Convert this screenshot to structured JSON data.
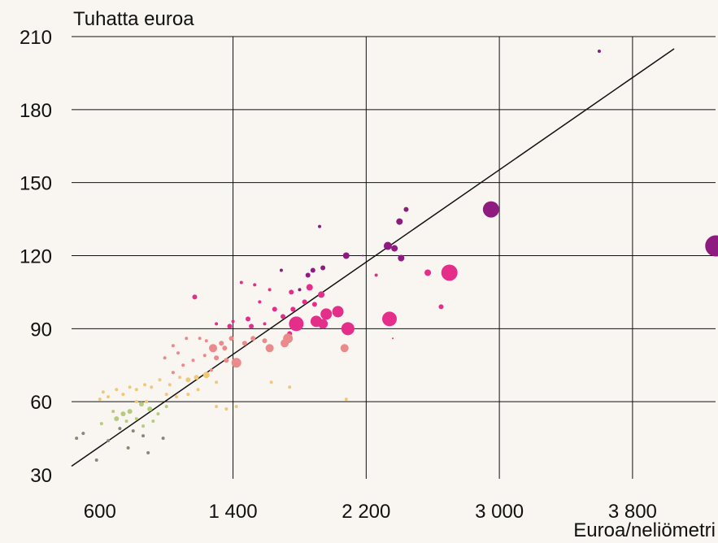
{
  "chart_data": {
    "type": "scatter",
    "title": "",
    "ylabel": "Tuhatta euroa",
    "xlabel": "Euroa/neliömetri",
    "x_ticks": [
      600,
      1400,
      2200,
      3000,
      3800
    ],
    "x_tick_labels": [
      "600",
      "1 400",
      "2 200",
      "3 000",
      "3 800"
    ],
    "y_ticks": [
      30,
      60,
      90,
      120,
      150,
      180,
      210
    ],
    "y_tick_labels": [
      "30",
      "60",
      "90",
      "120",
      "150",
      "180",
      "210"
    ],
    "xlim": [
      430,
      4250
    ],
    "ylim": [
      30,
      210
    ],
    "grid": true,
    "legend": "none",
    "trendline": {
      "x": [
        430,
        4050
      ],
      "y": [
        33.5,
        205.0
      ],
      "color": "#111111"
    },
    "colors": {
      "background": "#f9f5f0",
      "gridline": "#111111",
      "purple": "#8e1b7f",
      "magenta": "#e52e8a",
      "pink": "#ea8a8a",
      "yellow": "#f0c87a",
      "green": "#b5cd7a",
      "grey": "#888877"
    },
    "points": [
      {
        "x": 3600,
        "y": 204,
        "r": 2,
        "c": "purple"
      },
      {
        "x": 2950,
        "y": 139,
        "r": 10,
        "c": "purple"
      },
      {
        "x": 4300,
        "y": 124,
        "r": 13,
        "c": "purple"
      },
      {
        "x": 2440,
        "y": 139,
        "r": 3,
        "c": "purple"
      },
      {
        "x": 2400,
        "y": 134,
        "r": 4,
        "c": "purple"
      },
      {
        "x": 2330,
        "y": 124,
        "r": 5,
        "c": "purple"
      },
      {
        "x": 2370,
        "y": 123,
        "r": 4,
        "c": "purple"
      },
      {
        "x": 2410,
        "y": 119,
        "r": 4,
        "c": "purple"
      },
      {
        "x": 2080,
        "y": 120,
        "r": 4,
        "c": "purple"
      },
      {
        "x": 2180,
        "y": 120,
        "r": 1,
        "c": "purple"
      },
      {
        "x": 1920,
        "y": 132,
        "r": 2,
        "c": "purple"
      },
      {
        "x": 1880,
        "y": 114,
        "r": 3,
        "c": "purple"
      },
      {
        "x": 1940,
        "y": 115,
        "r": 3,
        "c": "purple"
      },
      {
        "x": 1850,
        "y": 112,
        "r": 3,
        "c": "purple"
      },
      {
        "x": 1800,
        "y": 106,
        "r": 2,
        "c": "purple"
      },
      {
        "x": 1690,
        "y": 114,
        "r": 2,
        "c": "purple"
      },
      {
        "x": 2260,
        "y": 112,
        "r": 2,
        "c": "magenta"
      },
      {
        "x": 2700,
        "y": 113,
        "r": 10,
        "c": "magenta"
      },
      {
        "x": 2570,
        "y": 113,
        "r": 4,
        "c": "magenta"
      },
      {
        "x": 2340,
        "y": 94,
        "r": 9,
        "c": "magenta"
      },
      {
        "x": 2650,
        "y": 99,
        "r": 3,
        "c": "magenta"
      },
      {
        "x": 2360,
        "y": 86,
        "r": 1,
        "c": "magenta"
      },
      {
        "x": 1930,
        "y": 104,
        "r": 4,
        "c": "magenta"
      },
      {
        "x": 1890,
        "y": 100,
        "r": 3,
        "c": "magenta"
      },
      {
        "x": 1860,
        "y": 107,
        "r": 4,
        "c": "magenta"
      },
      {
        "x": 1830,
        "y": 101,
        "r": 3,
        "c": "magenta"
      },
      {
        "x": 1760,
        "y": 98,
        "r": 3,
        "c": "magenta"
      },
      {
        "x": 1750,
        "y": 105,
        "r": 3,
        "c": "magenta"
      },
      {
        "x": 1650,
        "y": 98,
        "r": 3,
        "c": "magenta"
      },
      {
        "x": 1700,
        "y": 95,
        "r": 3,
        "c": "magenta"
      },
      {
        "x": 1620,
        "y": 106,
        "r": 2,
        "c": "magenta"
      },
      {
        "x": 1560,
        "y": 101,
        "r": 2,
        "c": "magenta"
      },
      {
        "x": 1530,
        "y": 108,
        "r": 2,
        "c": "magenta"
      },
      {
        "x": 1450,
        "y": 109,
        "r": 2,
        "c": "magenta"
      },
      {
        "x": 1490,
        "y": 94,
        "r": 3,
        "c": "magenta"
      },
      {
        "x": 1510,
        "y": 91,
        "r": 3,
        "c": "magenta"
      },
      {
        "x": 1590,
        "y": 92,
        "r": 2,
        "c": "magenta"
      },
      {
        "x": 1400,
        "y": 93,
        "r": 2,
        "c": "magenta"
      },
      {
        "x": 1380,
        "y": 91,
        "r": 3,
        "c": "magenta"
      },
      {
        "x": 1300,
        "y": 92,
        "r": 2,
        "c": "magenta"
      },
      {
        "x": 1170,
        "y": 103,
        "r": 3,
        "c": "magenta"
      },
      {
        "x": 1780,
        "y": 92,
        "r": 9,
        "c": "magenta"
      },
      {
        "x": 1900,
        "y": 93,
        "r": 7,
        "c": "magenta"
      },
      {
        "x": 1940,
        "y": 92,
        "r": 6,
        "c": "magenta"
      },
      {
        "x": 1960,
        "y": 96,
        "r": 7,
        "c": "magenta"
      },
      {
        "x": 2030,
        "y": 97,
        "r": 7,
        "c": "magenta"
      },
      {
        "x": 2090,
        "y": 90,
        "r": 8,
        "c": "magenta"
      },
      {
        "x": 1740,
        "y": 88,
        "r": 3,
        "c": "magenta"
      },
      {
        "x": 1730,
        "y": 86,
        "r": 6,
        "c": "pink"
      },
      {
        "x": 1710,
        "y": 84,
        "r": 5,
        "c": "pink"
      },
      {
        "x": 1620,
        "y": 82,
        "r": 5,
        "c": "pink"
      },
      {
        "x": 1590,
        "y": 85,
        "r": 3,
        "c": "pink"
      },
      {
        "x": 1520,
        "y": 86,
        "r": 3,
        "c": "pink"
      },
      {
        "x": 1470,
        "y": 84,
        "r": 3,
        "c": "pink"
      },
      {
        "x": 1390,
        "y": 86,
        "r": 3,
        "c": "pink"
      },
      {
        "x": 1350,
        "y": 82,
        "r": 3,
        "c": "pink"
      },
      {
        "x": 1330,
        "y": 84,
        "r": 3,
        "c": "pink"
      },
      {
        "x": 1280,
        "y": 82,
        "r": 5,
        "c": "pink"
      },
      {
        "x": 1240,
        "y": 85,
        "r": 2,
        "c": "pink"
      },
      {
        "x": 1200,
        "y": 86,
        "r": 2,
        "c": "pink"
      },
      {
        "x": 1120,
        "y": 86,
        "r": 2,
        "c": "pink"
      },
      {
        "x": 1040,
        "y": 83,
        "r": 2,
        "c": "pink"
      },
      {
        "x": 1070,
        "y": 80,
        "r": 2,
        "c": "pink"
      },
      {
        "x": 1360,
        "y": 77,
        "r": 3,
        "c": "pink"
      },
      {
        "x": 1420,
        "y": 76,
        "r": 6,
        "c": "pink"
      },
      {
        "x": 1300,
        "y": 78,
        "r": 3,
        "c": "pink"
      },
      {
        "x": 1230,
        "y": 79,
        "r": 2,
        "c": "pink"
      },
      {
        "x": 1160,
        "y": 77,
        "r": 2,
        "c": "pink"
      },
      {
        "x": 1100,
        "y": 75,
        "r": 2,
        "c": "pink"
      },
      {
        "x": 990,
        "y": 78,
        "r": 2,
        "c": "pink"
      },
      {
        "x": 2070,
        "y": 82,
        "r": 5,
        "c": "pink"
      },
      {
        "x": 1270,
        "y": 73,
        "r": 2,
        "c": "pink"
      },
      {
        "x": 1040,
        "y": 72,
        "r": 2,
        "c": "pink"
      },
      {
        "x": 1240,
        "y": 71,
        "r": 4,
        "c": "yellow"
      },
      {
        "x": 1180,
        "y": 70,
        "r": 3,
        "c": "yellow"
      },
      {
        "x": 1130,
        "y": 69,
        "r": 3,
        "c": "yellow"
      },
      {
        "x": 1080,
        "y": 70,
        "r": 2,
        "c": "yellow"
      },
      {
        "x": 1020,
        "y": 67,
        "r": 2,
        "c": "yellow"
      },
      {
        "x": 960,
        "y": 69,
        "r": 2,
        "c": "yellow"
      },
      {
        "x": 910,
        "y": 66,
        "r": 2,
        "c": "yellow"
      },
      {
        "x": 870,
        "y": 67,
        "r": 2,
        "c": "yellow"
      },
      {
        "x": 820,
        "y": 65,
        "r": 2,
        "c": "yellow"
      },
      {
        "x": 780,
        "y": 66,
        "r": 2,
        "c": "yellow"
      },
      {
        "x": 740,
        "y": 63,
        "r": 2,
        "c": "yellow"
      },
      {
        "x": 700,
        "y": 65,
        "r": 2,
        "c": "yellow"
      },
      {
        "x": 650,
        "y": 62,
        "r": 2,
        "c": "yellow"
      },
      {
        "x": 620,
        "y": 64,
        "r": 2,
        "c": "yellow"
      },
      {
        "x": 600,
        "y": 61,
        "r": 2,
        "c": "yellow"
      },
      {
        "x": 1000,
        "y": 63,
        "r": 2,
        "c": "yellow"
      },
      {
        "x": 1060,
        "y": 62,
        "r": 2,
        "c": "yellow"
      },
      {
        "x": 1130,
        "y": 63,
        "r": 2,
        "c": "yellow"
      },
      {
        "x": 1190,
        "y": 65,
        "r": 2,
        "c": "yellow"
      },
      {
        "x": 1300,
        "y": 68,
        "r": 2,
        "c": "yellow"
      },
      {
        "x": 1630,
        "y": 68,
        "r": 2,
        "c": "yellow"
      },
      {
        "x": 1740,
        "y": 66,
        "r": 2,
        "c": "yellow"
      },
      {
        "x": 2080,
        "y": 61,
        "r": 2,
        "c": "yellow"
      },
      {
        "x": 1300,
        "y": 58,
        "r": 2,
        "c": "yellow"
      },
      {
        "x": 1360,
        "y": 57,
        "r": 2,
        "c": "yellow"
      },
      {
        "x": 1420,
        "y": 58,
        "r": 2,
        "c": "yellow"
      },
      {
        "x": 880,
        "y": 60,
        "r": 2,
        "c": "yellow"
      },
      {
        "x": 820,
        "y": 60,
        "r": 2,
        "c": "yellow"
      },
      {
        "x": 900,
        "y": 57,
        "r": 3,
        "c": "green"
      },
      {
        "x": 850,
        "y": 59,
        "r": 3,
        "c": "green"
      },
      {
        "x": 780,
        "y": 56,
        "r": 3,
        "c": "green"
      },
      {
        "x": 740,
        "y": 55,
        "r": 3,
        "c": "green"
      },
      {
        "x": 700,
        "y": 53,
        "r": 3,
        "c": "green"
      },
      {
        "x": 680,
        "y": 56,
        "r": 2,
        "c": "green"
      },
      {
        "x": 760,
        "y": 52,
        "r": 2,
        "c": "green"
      },
      {
        "x": 820,
        "y": 53,
        "r": 2,
        "c": "green"
      },
      {
        "x": 950,
        "y": 55,
        "r": 2,
        "c": "green"
      },
      {
        "x": 1000,
        "y": 58,
        "r": 2,
        "c": "green"
      },
      {
        "x": 610,
        "y": 51,
        "r": 2,
        "c": "green"
      },
      {
        "x": 860,
        "y": 50,
        "r": 2,
        "c": "green"
      },
      {
        "x": 920,
        "y": 52,
        "r": 2,
        "c": "green"
      },
      {
        "x": 720,
        "y": 49,
        "r": 2,
        "c": "grey"
      },
      {
        "x": 800,
        "y": 48,
        "r": 2,
        "c": "grey"
      },
      {
        "x": 860,
        "y": 46,
        "r": 2,
        "c": "grey"
      },
      {
        "x": 650,
        "y": 44,
        "r": 2,
        "c": "grey"
      },
      {
        "x": 770,
        "y": 41,
        "r": 2,
        "c": "grey"
      },
      {
        "x": 890,
        "y": 39,
        "r": 2,
        "c": "grey"
      },
      {
        "x": 580,
        "y": 36,
        "r": 2,
        "c": "grey"
      },
      {
        "x": 460,
        "y": 45,
        "r": 2,
        "c": "grey"
      },
      {
        "x": 500,
        "y": 47,
        "r": 2,
        "c": "grey"
      },
      {
        "x": 980,
        "y": 45,
        "r": 2,
        "c": "grey"
      }
    ]
  }
}
